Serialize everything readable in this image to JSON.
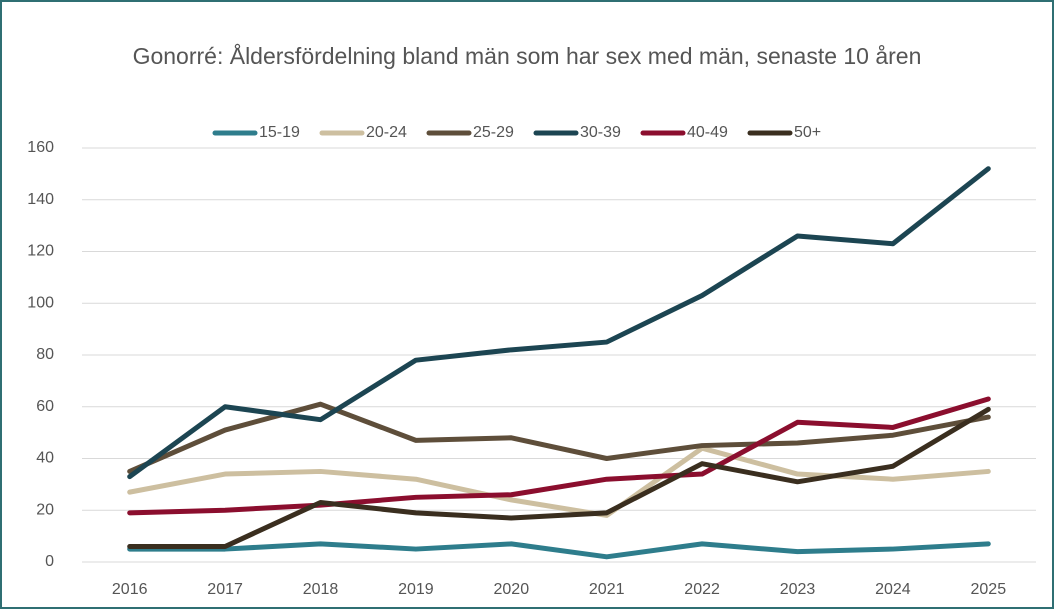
{
  "chart_data": {
    "type": "line",
    "title": "Gonorré: Åldersfördelning bland män som har sex med män, senaste 10 åren",
    "categories": [
      "2016",
      "2017",
      "2018",
      "2019",
      "2020",
      "2021",
      "2022",
      "2023",
      "2024",
      "2025"
    ],
    "series": [
      {
        "name": "15-19",
        "color": "#2e7d8c",
        "values": [
          5,
          5,
          7,
          5,
          7,
          2,
          7,
          4,
          5,
          7
        ]
      },
      {
        "name": "20-24",
        "color": "#cdbfa0",
        "values": [
          27,
          34,
          35,
          32,
          24,
          18,
          44,
          34,
          32,
          35
        ]
      },
      {
        "name": "25-29",
        "color": "#5e4e3a",
        "values": [
          35,
          51,
          61,
          47,
          48,
          40,
          45,
          46,
          49,
          56
        ]
      },
      {
        "name": "30-39",
        "color": "#1c4552",
        "values": [
          33,
          60,
          55,
          78,
          82,
          85,
          103,
          126,
          123,
          152
        ]
      },
      {
        "name": "40-49",
        "color": "#8b0e2e",
        "values": [
          19,
          20,
          22,
          25,
          26,
          32,
          34,
          54,
          52,
          63
        ]
      },
      {
        "name": "50+",
        "color": "#3a2e1f",
        "values": [
          6,
          6,
          23,
          19,
          17,
          19,
          38,
          31,
          37,
          59
        ]
      }
    ],
    "ylim": [
      0,
      160
    ],
    "yticks": [
      0,
      20,
      40,
      60,
      80,
      100,
      120,
      140,
      160
    ],
    "grid": true,
    "legend": "top"
  }
}
